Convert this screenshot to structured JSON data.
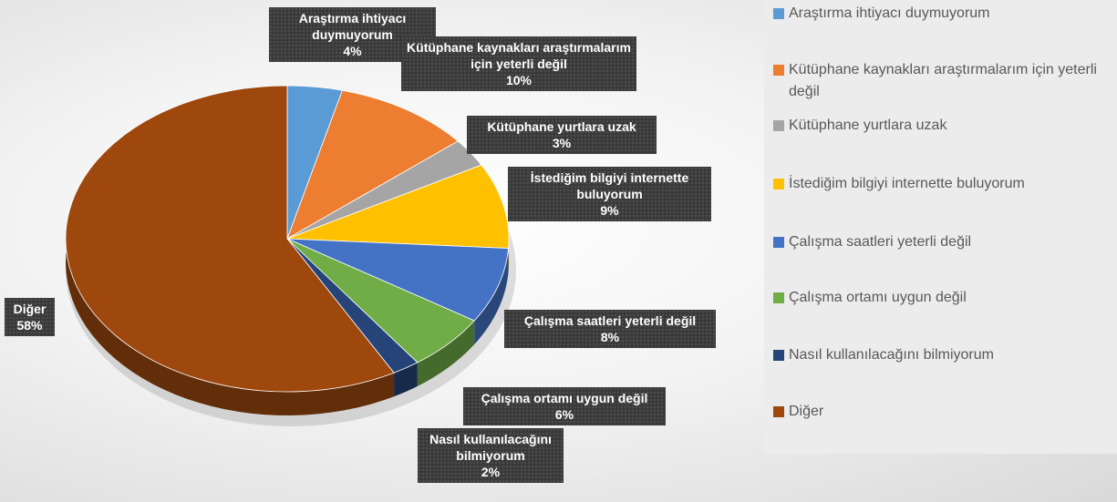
{
  "chart_data": {
    "type": "pie",
    "categories": [
      "Araştırma ihtiyacı duymuyorum",
      "Kütüphane kaynakları araştırmalarım için yeterli değil",
      "Kütüphane yurtlara uzak",
      "İstediğim bilgiyi internette buluyorum",
      "Çalışma saatleri yeterli değil",
      "Çalışma ortamı uygun değil",
      "Nasıl kullanılacağını bilmiyorum",
      "Diğer"
    ],
    "values": [
      4,
      10,
      3,
      9,
      8,
      6,
      2,
      58
    ],
    "value_labels": [
      "4%",
      "10%",
      "3%",
      "9%",
      "8%",
      "6%",
      "2%",
      "58%"
    ],
    "colors": [
      "#5b9bd5",
      "#ed7d31",
      "#a5a5a5",
      "#ffc000",
      "#4472c4",
      "#70ad47",
      "#264478",
      "#9e480e"
    ],
    "legend": "right"
  }
}
